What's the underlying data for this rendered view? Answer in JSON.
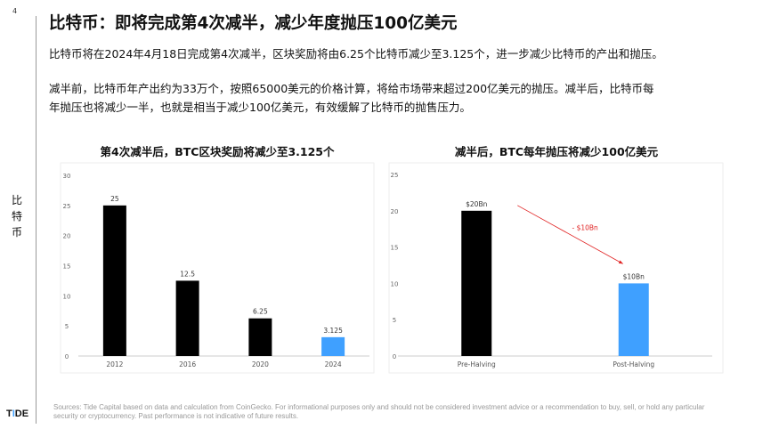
{
  "page_number": "4",
  "section_label": "比特币",
  "logo": "TIDE",
  "title": "比特币：即将完成第4次减半，减少年度抛压100亿美元",
  "paragraphs": [
    "比特币将在2024年4月18日完成第4次减半，区块奖励将由6.25个比特币减少至3.125个，进一步减少比特币的产出和抛压。",
    "减半前，比特币年产出约为33万个，按照65000美元的价格计算，将给市场带来超过200亿美元的抛压。减半后，比特币每",
    "年抛压也将减少一半，也就是相当于减少100亿美元，有效缓解了比特币的抛售压力。"
  ],
  "footer": "Sources: Tide Capital based on data and calculation from CoinGecko. For informational purposes only and should not be considered investment advice or a recommendation to buy, sell, or hold any particular security or cryptocurrency. Past performance is not indicative of future results.",
  "chart_data": [
    {
      "type": "bar",
      "title": "第4次减半后，BTC区块奖励将减少至3.125个",
      "categories": [
        "2012",
        "2016",
        "2020",
        "2024"
      ],
      "values": [
        25,
        12.5,
        6.25,
        3.125
      ],
      "data_labels": [
        "25",
        "12.5",
        "6.25",
        "3.125"
      ],
      "colors": [
        "#000000",
        "#000000",
        "#000000",
        "#3fa0ff"
      ],
      "ylim": [
        0,
        30
      ],
      "yticks": [
        0,
        5,
        10,
        15,
        20,
        25,
        30
      ],
      "grid": false,
      "legend": "none"
    },
    {
      "type": "bar",
      "title": "减半后，BTC每年抛压将减少100亿美元",
      "categories": [
        "Pre-Halving",
        "Post-Halving"
      ],
      "values": [
        20,
        10
      ],
      "data_labels": [
        "$20Bn",
        "$10Bn"
      ],
      "colors": [
        "#000000",
        "#3fa0ff"
      ],
      "annotation": "- $10Bn",
      "annotation_color": "#e02020",
      "ylim": [
        0,
        25
      ],
      "yticks": [
        0,
        5,
        10,
        15,
        20,
        25
      ],
      "grid": false,
      "legend": "none"
    }
  ]
}
